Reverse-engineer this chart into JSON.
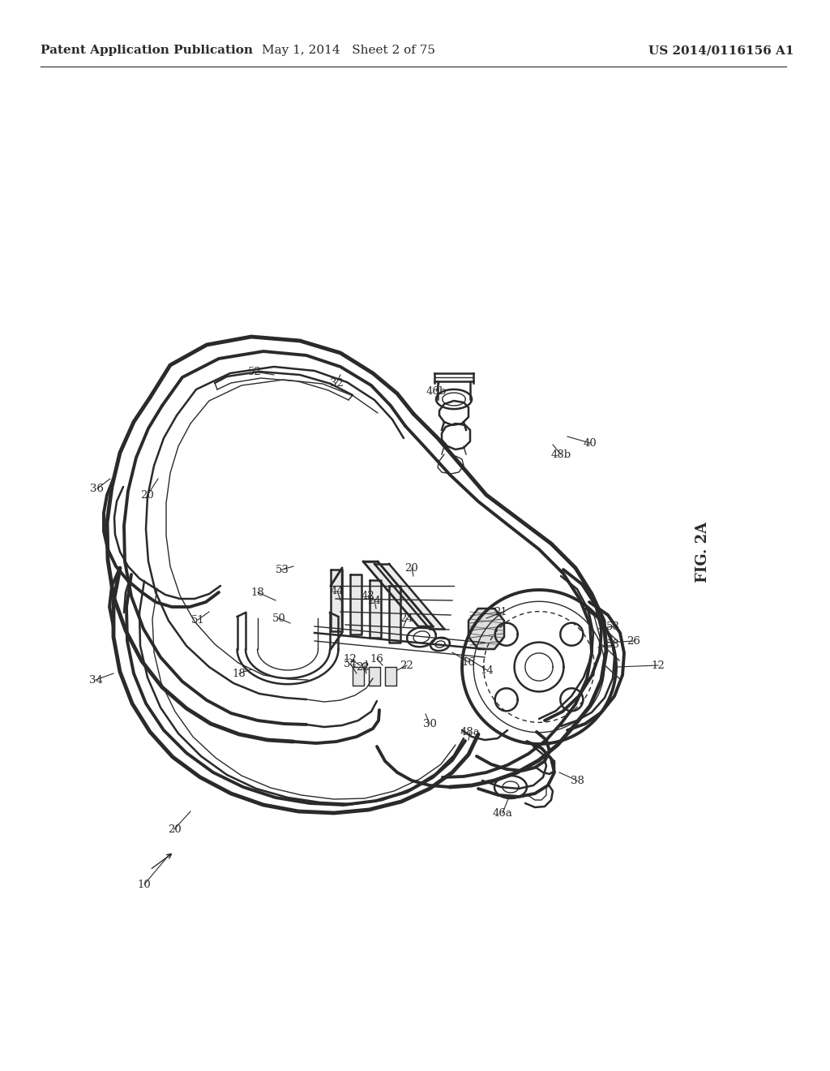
{
  "title_left": "Patent Application Publication",
  "title_middle": "May 1, 2014   Sheet 2 of 75",
  "title_right": "US 2014/0116156 A1",
  "fig_label": "FIG. 2A",
  "background_color": "#ffffff",
  "line_color": "#2a2a2a",
  "header_fontsize": 11,
  "fig_label_fontsize": 13,
  "ref_fontsize": 9.5
}
